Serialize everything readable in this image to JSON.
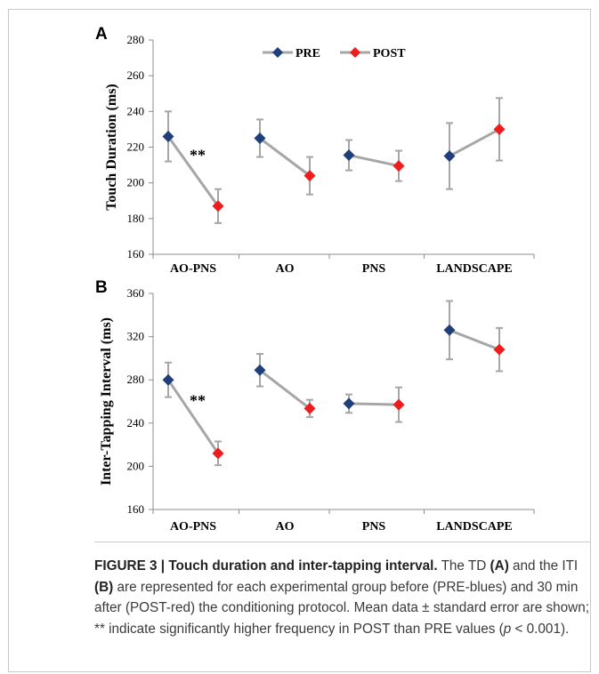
{
  "chart_data": [
    {
      "type": "line",
      "panel_label": "A",
      "ylabel": "Touch Duration (ms)",
      "ylim": [
        160,
        280
      ],
      "yticks": [
        "160",
        "180",
        "200",
        "220",
        "240",
        "260",
        "280"
      ],
      "categories": [
        "AO-PNS",
        "AO",
        "PNS",
        "LANDSCAPE"
      ],
      "series": [
        {
          "name": "PRE",
          "color": "#1f3f7a",
          "values": [
            226,
            225,
            215.5,
            215
          ],
          "error": [
            14,
            10.5,
            8.5,
            18.5
          ]
        },
        {
          "name": "POST",
          "color": "#ee1c1c",
          "values": [
            187,
            204,
            209.5,
            230
          ],
          "error": [
            9.5,
            10.5,
            8.5,
            17.5
          ]
        }
      ],
      "annotations": [
        {
          "text": "**",
          "category": "AO-PNS"
        }
      ],
      "legend_position": "top-center",
      "grid": false
    },
    {
      "type": "line",
      "panel_label": "B",
      "ylabel": "Inter-Tapping Interval (ms)",
      "ylim": [
        160,
        360
      ],
      "yticks": [
        "160",
        "200",
        "240",
        "280",
        "320",
        "360"
      ],
      "categories": [
        "AO-PNS",
        "AO",
        "PNS",
        "LANDSCAPE"
      ],
      "series": [
        {
          "name": "PRE",
          "color": "#1f3f7a",
          "values": [
            280,
            289,
            258,
            326
          ],
          "error": [
            16,
            15,
            8.5,
            27
          ]
        },
        {
          "name": "POST",
          "color": "#ee1c1c",
          "values": [
            212,
            253.5,
            257,
            308
          ],
          "error": [
            11,
            8,
            16,
            20
          ]
        }
      ],
      "annotations": [
        {
          "text": "**",
          "category": "AO-PNS"
        }
      ],
      "grid": false
    }
  ],
  "caption": {
    "figure_label": "FIGURE 3 | Touch duration and inter-tapping interval.",
    "text_1": " The TD ",
    "panel_a": "(A)",
    "text_2": " and the ITI ",
    "panel_b": "(B)",
    "text_3": " are represented for each experimental group before (PRE-blues) and 30 min after (POST-red) the conditioning protocol. Mean data ± standard error are shown; ** indicate significantly higher frequency in POST than PRE values (",
    "p_symbol": "p",
    "text_4": " < 0.001)."
  }
}
